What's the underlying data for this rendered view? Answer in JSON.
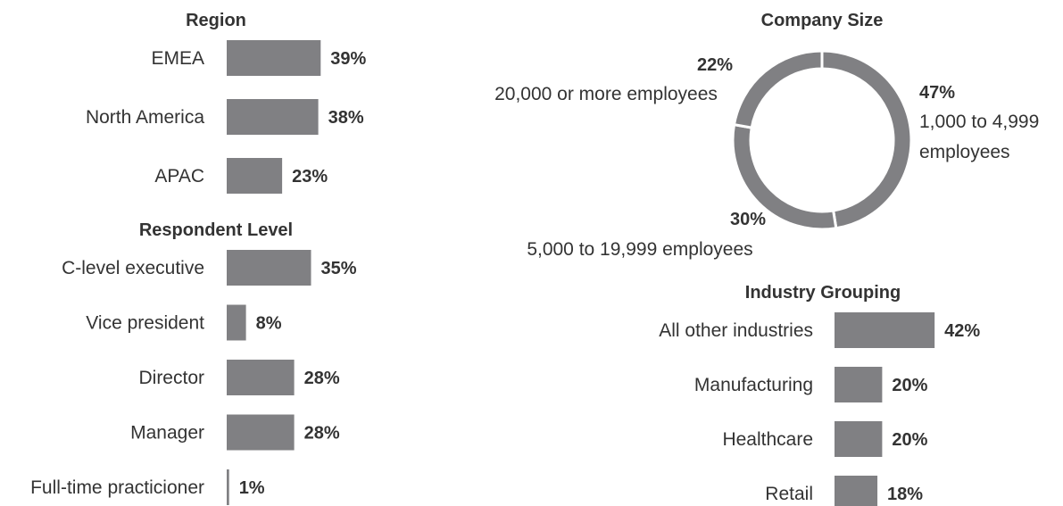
{
  "colors": {
    "bar": "#808083",
    "text": "#333333",
    "background": "#ffffff"
  },
  "chart_data": [
    {
      "type": "bar",
      "orientation": "horizontal",
      "title": "Region",
      "categories": [
        "EMEA",
        "North America",
        "APAC"
      ],
      "values": [
        39,
        38,
        23
      ],
      "value_labels": [
        "39%",
        "38%",
        "23%"
      ]
    },
    {
      "type": "bar",
      "orientation": "horizontal",
      "title": "Respondent Level",
      "categories": [
        "C-level executive",
        "Vice president",
        "Director",
        "Manager",
        "Full-time practicioner"
      ],
      "values": [
        35,
        8,
        28,
        28,
        1
      ],
      "value_labels": [
        "35%",
        "8%",
        "28%",
        "28%",
        "1%"
      ]
    },
    {
      "type": "pie",
      "donut": true,
      "title": "Company Size",
      "categories": [
        "1,000 to 4,999 employees",
        "5,000 to 19,999 employees",
        "20,000 or more employees"
      ],
      "values": [
        47,
        30,
        22
      ],
      "value_labels": [
        "47%",
        "30%",
        "22%"
      ]
    },
    {
      "type": "bar",
      "orientation": "horizontal",
      "title": "Industry Grouping",
      "categories": [
        "All other industries",
        "Manufacturing",
        "Healthcare",
        "Retail"
      ],
      "values": [
        42,
        20,
        20,
        18
      ],
      "value_labels": [
        "42%",
        "20%",
        "20%",
        "18%"
      ]
    }
  ]
}
